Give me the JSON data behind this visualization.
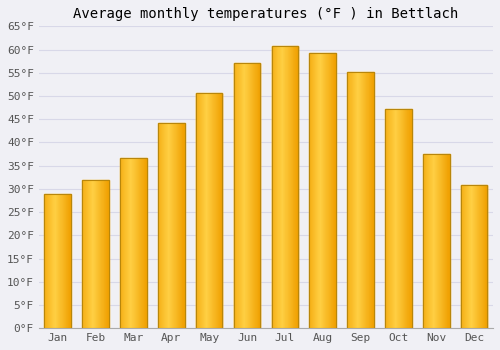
{
  "title": "Average monthly temperatures (°F ) in Bettlach",
  "months": [
    "Jan",
    "Feb",
    "Mar",
    "Apr",
    "May",
    "Jun",
    "Jul",
    "Aug",
    "Sep",
    "Oct",
    "Nov",
    "Dec"
  ],
  "values": [
    28.9,
    32.0,
    36.7,
    44.2,
    50.7,
    57.2,
    60.8,
    59.2,
    55.2,
    47.1,
    37.6,
    30.9
  ],
  "ylim": [
    0,
    65
  ],
  "yticks": [
    0,
    5,
    10,
    15,
    20,
    25,
    30,
    35,
    40,
    45,
    50,
    55,
    60,
    65
  ],
  "ytick_labels": [
    "0°F",
    "5°F",
    "10°F",
    "15°F",
    "20°F",
    "25°F",
    "30°F",
    "35°F",
    "40°F",
    "45°F",
    "50°F",
    "55°F",
    "60°F",
    "65°F"
  ],
  "background_color": "#f0f0f5",
  "plot_bg_color": "#f0f0f5",
  "grid_color": "#d8d8e8",
  "bar_color_light": "#FFD044",
  "bar_color_dark": "#F0A000",
  "bar_edge_color": "#B8860B",
  "title_fontsize": 10,
  "tick_fontsize": 8,
  "bar_width": 0.7
}
